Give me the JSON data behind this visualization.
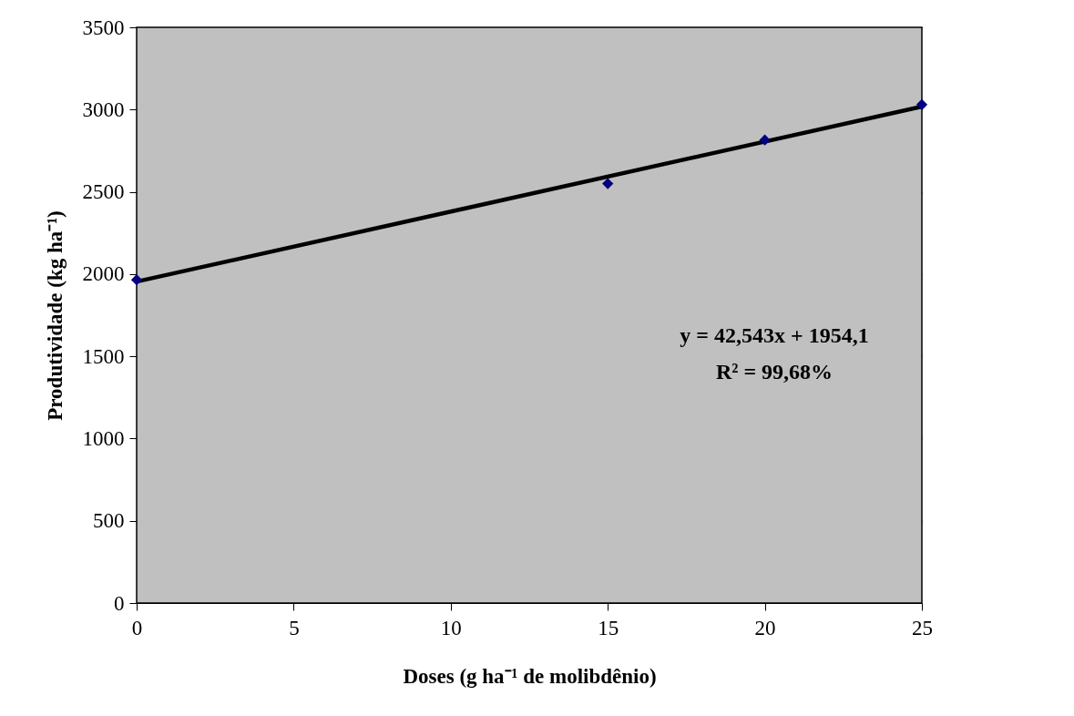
{
  "chart_data": {
    "type": "scatter",
    "xlabel": "Doses (g ha⁻¹ de molibdênio)",
    "ylabel": "Produtividade (kg ha⁻¹)",
    "xlim": [
      0,
      25
    ],
    "xticks": [
      0,
      5,
      10,
      15,
      20,
      25
    ],
    "ylim": [
      0,
      3500
    ],
    "yticks": [
      0,
      500,
      1000,
      1500,
      2000,
      2500,
      3000,
      3500
    ],
    "grid": "y",
    "marker": "diamond",
    "series": [
      {
        "type": "line",
        "color": "#000000",
        "x": [
          0,
          25
        ],
        "values": [
          1954,
          3018
        ],
        "marker": "none",
        "line_style": "solid"
      },
      {
        "color": "#000080",
        "x": [
          0,
          15,
          20,
          25
        ],
        "values": [
          1965,
          2550,
          2815,
          3030
        ]
      }
    ],
    "annotations": [
      "y = 42,543x + 1954,1",
      "R² = 99,68%"
    ]
  }
}
